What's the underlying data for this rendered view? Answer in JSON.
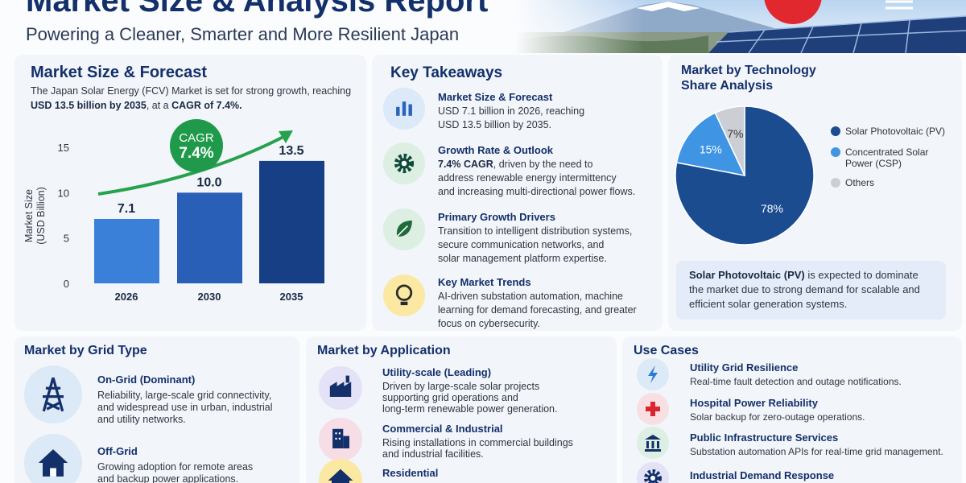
{
  "header": {
    "title": "Market Size & Analysis Report",
    "subtitle": "Powering a Cleaner, Smarter and More Resilient Japan"
  },
  "market_size": {
    "title": "Market Size & Forecast",
    "intro_line_1": "The Japan Solar Energy (FCV) Market is set for strong growth, reaching",
    "intro_line_2": {
      "highlight_1": "USD 13.5 billion by 2035",
      "text": ", at a ",
      "highlight_2": "CAGR of 7.4%."
    }
  },
  "chart_data": [
    {
      "type": "bar",
      "y_label": [
        "Market Size",
        "(USD Billion)"
      ],
      "categories": [
        "2026",
        "2030",
        "2035"
      ],
      "values": [
        7.1,
        10,
        13.5
      ],
      "value_labels": [
        "7.1",
        "10.0",
        "13.5"
      ],
      "colors": [
        "#3a80d8",
        "#2a5fb8",
        "#163f85"
      ],
      "ylim": [
        0,
        15
      ],
      "yticks": [
        0,
        5,
        10,
        15
      ],
      "annotation": {
        "label": "CAGR",
        "value": "7.4%"
      }
    },
    {
      "type": "pie",
      "title": [
        "Market by Technology",
        "Share Analysis"
      ],
      "categories": [
        "Solar Photovoltaic (PV)",
        "Concentrated Solar Power (CSP)",
        "Others"
      ],
      "values": [
        78,
        15,
        7
      ],
      "value_labels": [
        "78%",
        "15%",
        "7%"
      ],
      "colors": [
        "#1b4c90",
        "#3f95e3",
        "#cbcfd5"
      ],
      "note": {
        "bold": "Solar Photovoltaic (PV)",
        "line_1": " is expected to dominate",
        "lines": [
          "the market due to strong demand for scalable and",
          "efficient solar generation systems."
        ]
      }
    }
  ],
  "key_takeaways": {
    "title": "Key Takeaways",
    "items": [
      {
        "title": "Market Size & Forecast",
        "lines": [
          "USD 7.1 billion in 2026, reaching",
          "USD 13.5 billion by 2035."
        ]
      },
      {
        "title": "Growth Rate & Outlook",
        "bold": "7.4% CAGR",
        "line_1": ", driven by the need to",
        "lines": [
          "address renewable energy intermittency",
          "and increasing multi-directional power flows."
        ]
      },
      {
        "title": "Primary Growth Drivers",
        "lines": [
          "Transition to intelligent distribution systems,",
          "secure communication networks, and",
          "solar management platform expertise."
        ]
      },
      {
        "title": "Key Market Trends",
        "lines": [
          "AI-driven substation automation, machine",
          "learning for demand forecasting, and greater",
          "focus on cybersecurity."
        ]
      }
    ]
  },
  "grid_type": {
    "title": "Market by Grid Type",
    "items": [
      {
        "title": "On-Grid (Dominant)",
        "lines": [
          "Reliability, large-scale grid connectivity,",
          "and widespread use in urban, industrial",
          "and utility networks."
        ]
      },
      {
        "title": "Off-Grid",
        "lines": [
          "Growing adoption for remote areas",
          "and backup power applications."
        ]
      }
    ]
  },
  "application": {
    "title": "Market by Application",
    "items": [
      {
        "title": "Utility-scale (Leading)",
        "lines": [
          "Driven by large-scale solar projects",
          "supporting grid operations and",
          "long-term renewable power generation."
        ]
      },
      {
        "title": "Commercial & Industrial",
        "lines": [
          "Rising installations in commercial buildings",
          "and industrial facilities."
        ]
      },
      {
        "title": "Residential",
        "lines": []
      }
    ]
  },
  "use_cases": {
    "title": "Use Cases",
    "items": [
      {
        "title": "Utility Grid Resilience",
        "lines": [
          "Real-time fault detection and outage notifications."
        ]
      },
      {
        "title": "Hospital Power Reliability",
        "lines": [
          "Solar backup for zero-outage operations."
        ]
      },
      {
        "title": "Public Infrastructure Services",
        "lines": [
          "Substation automation APIs for real-time grid management."
        ]
      },
      {
        "title": "Industrial Demand Response",
        "lines": []
      }
    ]
  }
}
